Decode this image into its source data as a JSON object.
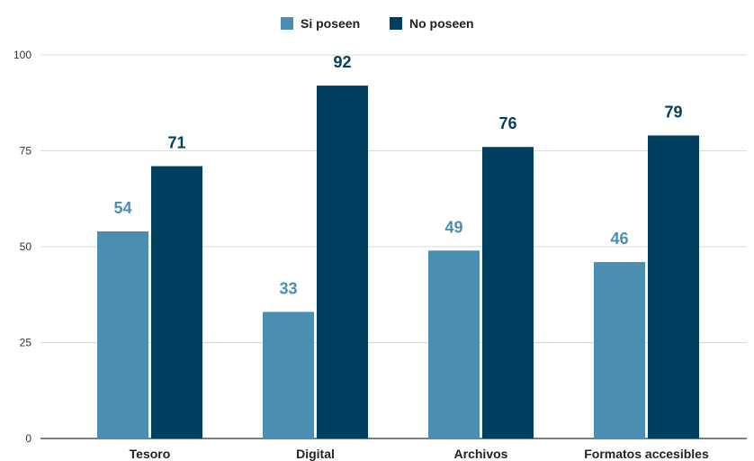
{
  "chart_data": {
    "type": "bar",
    "categories": [
      "Tesoro",
      "Digital",
      "Archivos",
      "Formatos accesibles"
    ],
    "series": [
      {
        "name": "Si poseen",
        "values": [
          54,
          33,
          49,
          46
        ],
        "color": "#4a8fb2"
      },
      {
        "name": "No poseen",
        "values": [
          71,
          92,
          76,
          79
        ],
        "color": "#003f5e"
      }
    ],
    "title": "",
    "xlabel": "",
    "ylabel": "",
    "ylim": [
      0,
      100
    ],
    "yticks": [
      0,
      25,
      50,
      75,
      100
    ],
    "grid": true,
    "legend_position": "top-center",
    "data_labels": true
  }
}
